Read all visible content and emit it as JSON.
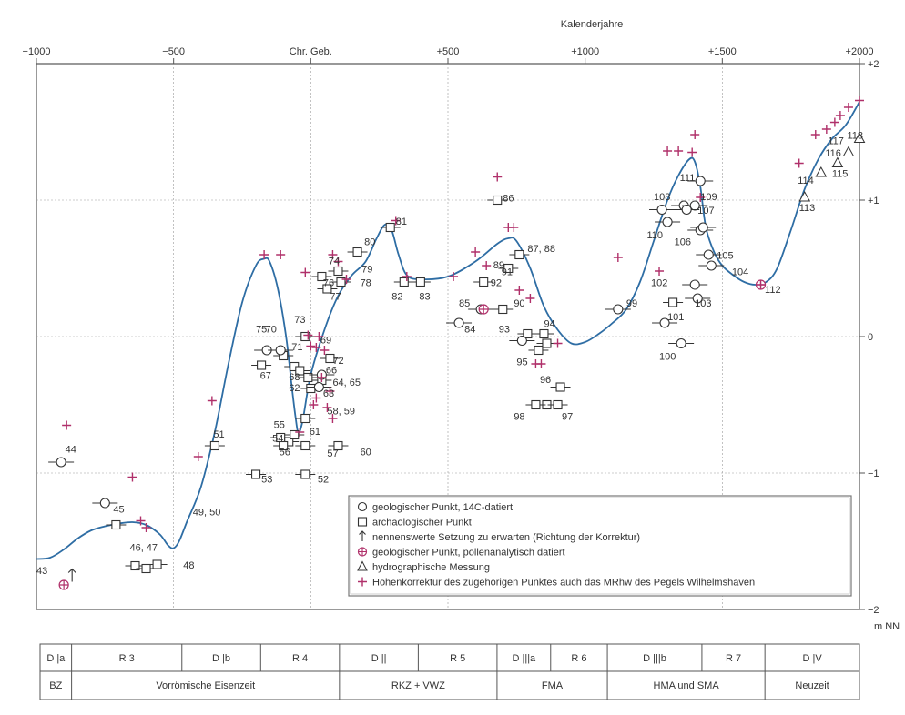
{
  "chart_data": {
    "type": "scatter",
    "title": "",
    "xlabel": "Kalenderjahre",
    "ylabel": "m NN",
    "xlim": [
      -1000,
      2000
    ],
    "ylim": [
      -2,
      2
    ],
    "x_ticks": [
      {
        "v": -1000,
        "label": "−1000"
      },
      {
        "v": -500,
        "label": "−500"
      },
      {
        "v": 0,
        "label": "Chr. Geb."
      },
      {
        "v": 500,
        "label": "+500"
      },
      {
        "v": 1000,
        "label": "+1000"
      },
      {
        "v": 1500,
        "label": "+1500"
      },
      {
        "v": 2000,
        "label": "+2000"
      }
    ],
    "y_ticks": [
      {
        "v": 2,
        "label": "+2"
      },
      {
        "v": 1,
        "label": "+1"
      },
      {
        "v": 0,
        "label": "0"
      },
      {
        "v": -1,
        "label": "−1"
      },
      {
        "v": -2,
        "label": "−2"
      }
    ],
    "grid": true,
    "legend_position": "bottom-right",
    "legend": [
      {
        "symbol": "circle",
        "label": "geologischer Punkt, 14C-datiert"
      },
      {
        "symbol": "square",
        "label": "archäologischer Punkt"
      },
      {
        "symbol": "arrow",
        "label": "nennenswerte Setzung zu erwarten (Richtung der Korrektur)"
      },
      {
        "symbol": "circle-cross",
        "label": "geologischer Punkt, pollenanalytisch datiert"
      },
      {
        "symbol": "triangle",
        "label": "hydrographische Messung"
      },
      {
        "symbol": "plus",
        "label": "Höhenkorrektur des zugehörigen Punktes auch das MRhw des Pegels Wilhelmshaven"
      }
    ],
    "colors": {
      "curve": "#2e6da4",
      "plus": "#b0306a",
      "marker": "#333333",
      "grid": "#999999"
    },
    "curve": [
      [
        -1000,
        -1.63
      ],
      [
        -950,
        -1.62
      ],
      [
        -900,
        -1.56
      ],
      [
        -850,
        -1.48
      ],
      [
        -800,
        -1.42
      ],
      [
        -750,
        -1.39
      ],
      [
        -700,
        -1.37
      ],
      [
        -650,
        -1.36
      ],
      [
        -600,
        -1.38
      ],
      [
        -550,
        -1.45
      ],
      [
        -520,
        -1.53
      ],
      [
        -500,
        -1.55
      ],
      [
        -480,
        -1.5
      ],
      [
        -450,
        -1.35
      ],
      [
        -400,
        -1.1
      ],
      [
        -350,
        -0.7
      ],
      [
        -300,
        -0.2
      ],
      [
        -250,
        0.25
      ],
      [
        -200,
        0.52
      ],
      [
        -170,
        0.57
      ],
      [
        -150,
        0.55
      ],
      [
        -120,
        0.35
      ],
      [
        -90,
        0.0
      ],
      [
        -70,
        -0.35
      ],
      [
        -55,
        -0.6
      ],
      [
        -45,
        -0.7
      ],
      [
        -30,
        -0.62
      ],
      [
        0,
        -0.28
      ],
      [
        50,
        0.05
      ],
      [
        100,
        0.3
      ],
      [
        150,
        0.45
      ],
      [
        200,
        0.55
      ],
      [
        240,
        0.72
      ],
      [
        270,
        0.82
      ],
      [
        295,
        0.78
      ],
      [
        320,
        0.6
      ],
      [
        350,
        0.45
      ],
      [
        400,
        0.42
      ],
      [
        500,
        0.44
      ],
      [
        600,
        0.55
      ],
      [
        680,
        0.68
      ],
      [
        720,
        0.72
      ],
      [
        750,
        0.7
      ],
      [
        800,
        0.5
      ],
      [
        850,
        0.22
      ],
      [
        900,
        0.05
      ],
      [
        950,
        -0.05
      ],
      [
        1000,
        -0.04
      ],
      [
        1050,
        0.02
      ],
      [
        1100,
        0.1
      ],
      [
        1150,
        0.2
      ],
      [
        1200,
        0.4
      ],
      [
        1250,
        0.7
      ],
      [
        1300,
        1.0
      ],
      [
        1340,
        1.18
      ],
      [
        1380,
        1.3
      ],
      [
        1400,
        1.28
      ],
      [
        1420,
        1.1
      ],
      [
        1440,
        0.8
      ],
      [
        1470,
        0.62
      ],
      [
        1500,
        0.52
      ],
      [
        1540,
        0.45
      ],
      [
        1580,
        0.4
      ],
      [
        1620,
        0.38
      ],
      [
        1660,
        0.4
      ],
      [
        1700,
        0.5
      ],
      [
        1750,
        0.78
      ],
      [
        1800,
        1.08
      ],
      [
        1850,
        1.3
      ],
      [
        1900,
        1.45
      ],
      [
        1950,
        1.55
      ],
      [
        2000,
        1.72
      ]
    ],
    "labels": [
      {
        "x": -895,
        "y": -0.85,
        "text": "44"
      },
      {
        "x": -1000,
        "y": -1.74,
        "text": "43"
      },
      {
        "x": -720,
        "y": -1.29,
        "text": "45"
      },
      {
        "x": -660,
        "y": -1.57,
        "text": "46, 47"
      },
      {
        "x": -465,
        "y": -1.7,
        "text": "48"
      },
      {
        "x": -430,
        "y": -1.31,
        "text": "49, 50"
      },
      {
        "x": -355,
        "y": -0.74,
        "text": "51"
      },
      {
        "x": -180,
        "y": -1.07,
        "text": "53"
      },
      {
        "x": 25,
        "y": -1.07,
        "text": "52"
      },
      {
        "x": -135,
        "y": -0.67,
        "text": "55"
      },
      {
        "x": -140,
        "y": -0.77,
        "text": "54"
      },
      {
        "x": -115,
        "y": -0.87,
        "text": "56"
      },
      {
        "x": 60,
        "y": -0.88,
        "text": "57"
      },
      {
        "x": 180,
        "y": -0.87,
        "text": "60"
      },
      {
        "x": -5,
        "y": -0.72,
        "text": "61"
      },
      {
        "x": 60,
        "y": -0.57,
        "text": "58, 59"
      },
      {
        "x": -200,
        "y": 0.03,
        "text": "75"
      },
      {
        "x": -165,
        "y": 0.03,
        "text": "70"
      },
      {
        "x": -60,
        "y": 0.1,
        "text": "73"
      },
      {
        "x": 35,
        "y": -0.05,
        "text": "69"
      },
      {
        "x": 80,
        "y": -0.2,
        "text": "72"
      },
      {
        "x": -185,
        "y": -0.31,
        "text": "67"
      },
      {
        "x": -70,
        "y": -0.1,
        "text": "71"
      },
      {
        "x": -80,
        "y": -0.32,
        "text": "68"
      },
      {
        "x": 55,
        "y": -0.27,
        "text": "66"
      },
      {
        "x": -80,
        "y": -0.4,
        "text": "62"
      },
      {
        "x": 45,
        "y": -0.44,
        "text": "63"
      },
      {
        "x": 80,
        "y": -0.36,
        "text": "64, 65"
      },
      {
        "x": 65,
        "y": 0.53,
        "text": "74"
      },
      {
        "x": 45,
        "y": 0.37,
        "text": "76"
      },
      {
        "x": 70,
        "y": 0.27,
        "text": "77"
      },
      {
        "x": 185,
        "y": 0.47,
        "text": "79"
      },
      {
        "x": 180,
        "y": 0.37,
        "text": "78"
      },
      {
        "x": 195,
        "y": 0.67,
        "text": "80"
      },
      {
        "x": 310,
        "y": 0.82,
        "text": "81"
      },
      {
        "x": 295,
        "y": 0.27,
        "text": "82"
      },
      {
        "x": 395,
        "y": 0.27,
        "text": "83"
      },
      {
        "x": 540,
        "y": 0.22,
        "text": "85"
      },
      {
        "x": 560,
        "y": 0.03,
        "text": "84"
      },
      {
        "x": 700,
        "y": 0.99,
        "text": "86"
      },
      {
        "x": 790,
        "y": 0.62,
        "text": "87, 88"
      },
      {
        "x": 665,
        "y": 0.5,
        "text": "89"
      },
      {
        "x": 695,
        "y": 0.45,
        "text": "91"
      },
      {
        "x": 655,
        "y": 0.37,
        "text": "92"
      },
      {
        "x": 740,
        "y": 0.22,
        "text": "90"
      },
      {
        "x": 685,
        "y": 0.03,
        "text": "93"
      },
      {
        "x": 850,
        "y": 0.07,
        "text": "94"
      },
      {
        "x": 750,
        "y": -0.21,
        "text": "95"
      },
      {
        "x": 835,
        "y": -0.34,
        "text": "96"
      },
      {
        "x": 740,
        "y": -0.61,
        "text": "98"
      },
      {
        "x": 915,
        "y": -0.61,
        "text": "97"
      },
      {
        "x": 1150,
        "y": 0.22,
        "text": "99"
      },
      {
        "x": 1300,
        "y": 0.12,
        "text": "101"
      },
      {
        "x": 1270,
        "y": -0.17,
        "text": "100"
      },
      {
        "x": 1240,
        "y": 0.37,
        "text": "102"
      },
      {
        "x": 1400,
        "y": 0.22,
        "text": "103"
      },
      {
        "x": 1345,
        "y": 1.14,
        "text": "111"
      },
      {
        "x": 1250,
        "y": 1.0,
        "text": "108"
      },
      {
        "x": 1420,
        "y": 1.0,
        "text": "109"
      },
      {
        "x": 1410,
        "y": 0.9,
        "text": "107"
      },
      {
        "x": 1225,
        "y": 0.72,
        "text": "110"
      },
      {
        "x": 1325,
        "y": 0.67,
        "text": "106"
      },
      {
        "x": 1480,
        "y": 0.57,
        "text": "105"
      },
      {
        "x": 1535,
        "y": 0.45,
        "text": "104"
      },
      {
        "x": 1655,
        "y": 0.32,
        "text": "112"
      },
      {
        "x": 1780,
        "y": 0.92,
        "text": "113"
      },
      {
        "x": 1775,
        "y": 1.12,
        "text": "114"
      },
      {
        "x": 1900,
        "y": 1.17,
        "text": "115"
      },
      {
        "x": 1875,
        "y": 1.32,
        "text": "116"
      },
      {
        "x": 1885,
        "y": 1.41,
        "text": "117"
      },
      {
        "x": 1955,
        "y": 1.45,
        "text": "118"
      }
    ],
    "points_circle": [
      [
        -910,
        -0.92
      ],
      [
        -750,
        -1.22
      ],
      [
        -160,
        -0.1
      ],
      [
        -110,
        -0.1
      ],
      [
        40,
        -0.28
      ],
      [
        30,
        -0.37
      ],
      [
        540,
        0.1
      ],
      [
        620,
        0.2
      ],
      [
        770,
        -0.03
      ],
      [
        1120,
        0.2
      ],
      [
        1290,
        0.1
      ],
      [
        1350,
        -0.05
      ],
      [
        1300,
        0.84
      ],
      [
        1360,
        0.96
      ],
      [
        1400,
        0.96
      ],
      [
        1420,
        0.78
      ],
      [
        1450,
        0.6
      ],
      [
        1460,
        0.52
      ],
      [
        1400,
        0.38
      ],
      [
        1410,
        0.28
      ],
      [
        1420,
        1.14
      ],
      [
        1370,
        0.93
      ],
      [
        1430,
        0.8
      ],
      [
        1280,
        0.93
      ]
    ],
    "points_square": [
      [
        -710,
        -1.38
      ],
      [
        -560,
        -1.67
      ],
      [
        -640,
        -1.68
      ],
      [
        -600,
        -1.7
      ],
      [
        -350,
        -0.8
      ],
      [
        -200,
        -1.01
      ],
      [
        -20,
        -1.01
      ],
      [
        -180,
        -0.21
      ],
      [
        -110,
        -0.74
      ],
      [
        -80,
        -0.77
      ],
      [
        -100,
        -0.8
      ],
      [
        -20,
        -0.8
      ],
      [
        100,
        -0.8
      ],
      [
        -60,
        -0.72
      ],
      [
        -20,
        -0.6
      ],
      [
        -20,
        0.0
      ],
      [
        70,
        -0.16
      ],
      [
        -100,
        -0.14
      ],
      [
        -60,
        -0.22
      ],
      [
        -40,
        -0.25
      ],
      [
        -10,
        -0.3
      ],
      [
        40,
        -0.32
      ],
      [
        0,
        -0.38
      ],
      [
        100,
        0.48
      ],
      [
        40,
        0.44
      ],
      [
        60,
        0.35
      ],
      [
        110,
        0.4
      ],
      [
        170,
        0.62
      ],
      [
        290,
        0.8
      ],
      [
        340,
        0.4
      ],
      [
        400,
        0.4
      ],
      [
        630,
        0.4
      ],
      [
        680,
        1.0
      ],
      [
        760,
        0.6
      ],
      [
        720,
        0.5
      ],
      [
        700,
        0.2
      ],
      [
        790,
        0.02
      ],
      [
        850,
        0.02
      ],
      [
        830,
        -0.1
      ],
      [
        860,
        -0.05
      ],
      [
        910,
        -0.37
      ],
      [
        860,
        -0.5
      ],
      [
        820,
        -0.5
      ],
      [
        900,
        -0.5
      ],
      [
        1320,
        0.25
      ]
    ],
    "points_triangle": [
      [
        1800,
        1.02
      ],
      [
        1860,
        1.2
      ],
      [
        1920,
        1.27
      ],
      [
        1960,
        1.35
      ],
      [
        2000,
        1.45
      ]
    ],
    "points_crosscircle": [
      [
        -900,
        -1.82
      ],
      [
        630,
        0.2
      ],
      [
        1640,
        0.38
      ]
    ],
    "points_arrow": [
      [
        -870,
        -1.75
      ]
    ],
    "points_plus": [
      [
        -890,
        -0.65
      ],
      [
        -650,
        -1.03
      ],
      [
        -620,
        -1.35
      ],
      [
        -600,
        -1.4
      ],
      [
        -410,
        -0.88
      ],
      [
        -360,
        -0.47
      ],
      [
        -170,
        0.6
      ],
      [
        -110,
        0.6
      ],
      [
        -40,
        -0.7
      ],
      [
        -20,
        0.47
      ],
      [
        10,
        -0.5
      ],
      [
        20,
        -0.45
      ],
      [
        30,
        0.0
      ],
      [
        50,
        -0.1
      ],
      [
        80,
        0.6
      ],
      [
        100,
        0.55
      ],
      [
        130,
        0.42
      ],
      [
        60,
        -0.52
      ],
      [
        -10,
        0.01
      ],
      [
        0,
        -0.07
      ],
      [
        20,
        -0.08
      ],
      [
        40,
        -0.3
      ],
      [
        70,
        -0.4
      ],
      [
        80,
        -0.6
      ],
      [
        310,
        0.85
      ],
      [
        350,
        0.44
      ],
      [
        520,
        0.44
      ],
      [
        600,
        0.62
      ],
      [
        640,
        0.52
      ],
      [
        680,
        1.17
      ],
      [
        720,
        0.8
      ],
      [
        740,
        0.8
      ],
      [
        760,
        0.34
      ],
      [
        800,
        0.28
      ],
      [
        820,
        -0.2
      ],
      [
        840,
        -0.2
      ],
      [
        900,
        -0.05
      ],
      [
        1120,
        0.58
      ],
      [
        1270,
        0.48
      ],
      [
        1300,
        1.36
      ],
      [
        1340,
        1.36
      ],
      [
        1390,
        1.35
      ],
      [
        1400,
        1.48
      ],
      [
        1420,
        1.02
      ],
      [
        1640,
        0.38
      ],
      [
        1780,
        1.27
      ],
      [
        1840,
        1.48
      ],
      [
        1880,
        1.52
      ],
      [
        1910,
        1.57
      ],
      [
        1930,
        1.62
      ],
      [
        1960,
        1.68
      ],
      [
        2000,
        1.73
      ]
    ]
  },
  "periods_top": [
    {
      "from": -1000,
      "to": -900,
      "label": "D  |a"
    },
    {
      "from": -900,
      "to": -550,
      "label": "R  3"
    },
    {
      "from": -550,
      "to": -300,
      "label": "D  |b"
    },
    {
      "from": -300,
      "to": -50,
      "label": "R  4"
    },
    {
      "from": -50,
      "to": 200,
      "label": "D  ||"
    },
    {
      "from": 200,
      "to": 450,
      "label": "R  5"
    },
    {
      "from": 450,
      "to": 620,
      "label": "D |||a"
    },
    {
      "from": 620,
      "to": 800,
      "label": "R  6"
    },
    {
      "from": 800,
      "to": 1100,
      "label": "D  |||b"
    },
    {
      "from": 1100,
      "to": 1300,
      "label": "R  7"
    },
    {
      "from": 1300,
      "to": 1600,
      "label": "D  |V"
    }
  ],
  "periods_bottom": [
    {
      "from": -1000,
      "to": -900,
      "label": "BZ"
    },
    {
      "from": -900,
      "to": -50,
      "label": "Vorrömische Eisenzeit"
    },
    {
      "from": -50,
      "to": 450,
      "label": "RKZ + VWZ"
    },
    {
      "from": 450,
      "to": 800,
      "label": "FMA"
    },
    {
      "from": 800,
      "to": 1300,
      "label": "HMA und SMA"
    },
    {
      "from": 1300,
      "to": 1600,
      "label": "Neuzeit"
    }
  ]
}
